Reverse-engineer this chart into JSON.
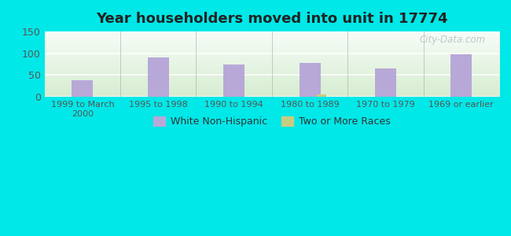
{
  "title": "Year householders moved into unit in 17774",
  "categories": [
    "1999 to March\n2000",
    "1995 to 1998",
    "1990 to 1994",
    "1980 to 1989",
    "1970 to 1979",
    "1969 or earlier"
  ],
  "white_non_hispanic": [
    38,
    90,
    73,
    78,
    65,
    97
  ],
  "two_or_more_races": [
    0,
    0,
    0,
    4,
    0,
    0
  ],
  "bar_color_white": "#b8a8d8",
  "bar_color_two": "#c8cc80",
  "background_outer": "#00e8e8",
  "background_plot_topleft": "#f8faf8",
  "background_plot_bottomright": "#d8ecd0",
  "ylim": [
    0,
    150
  ],
  "yticks": [
    0,
    50,
    100,
    150
  ],
  "bar_width": 0.28,
  "legend_white": "White Non-Hispanic",
  "legend_two": "Two or More Races",
  "watermark": "City-Data.com"
}
